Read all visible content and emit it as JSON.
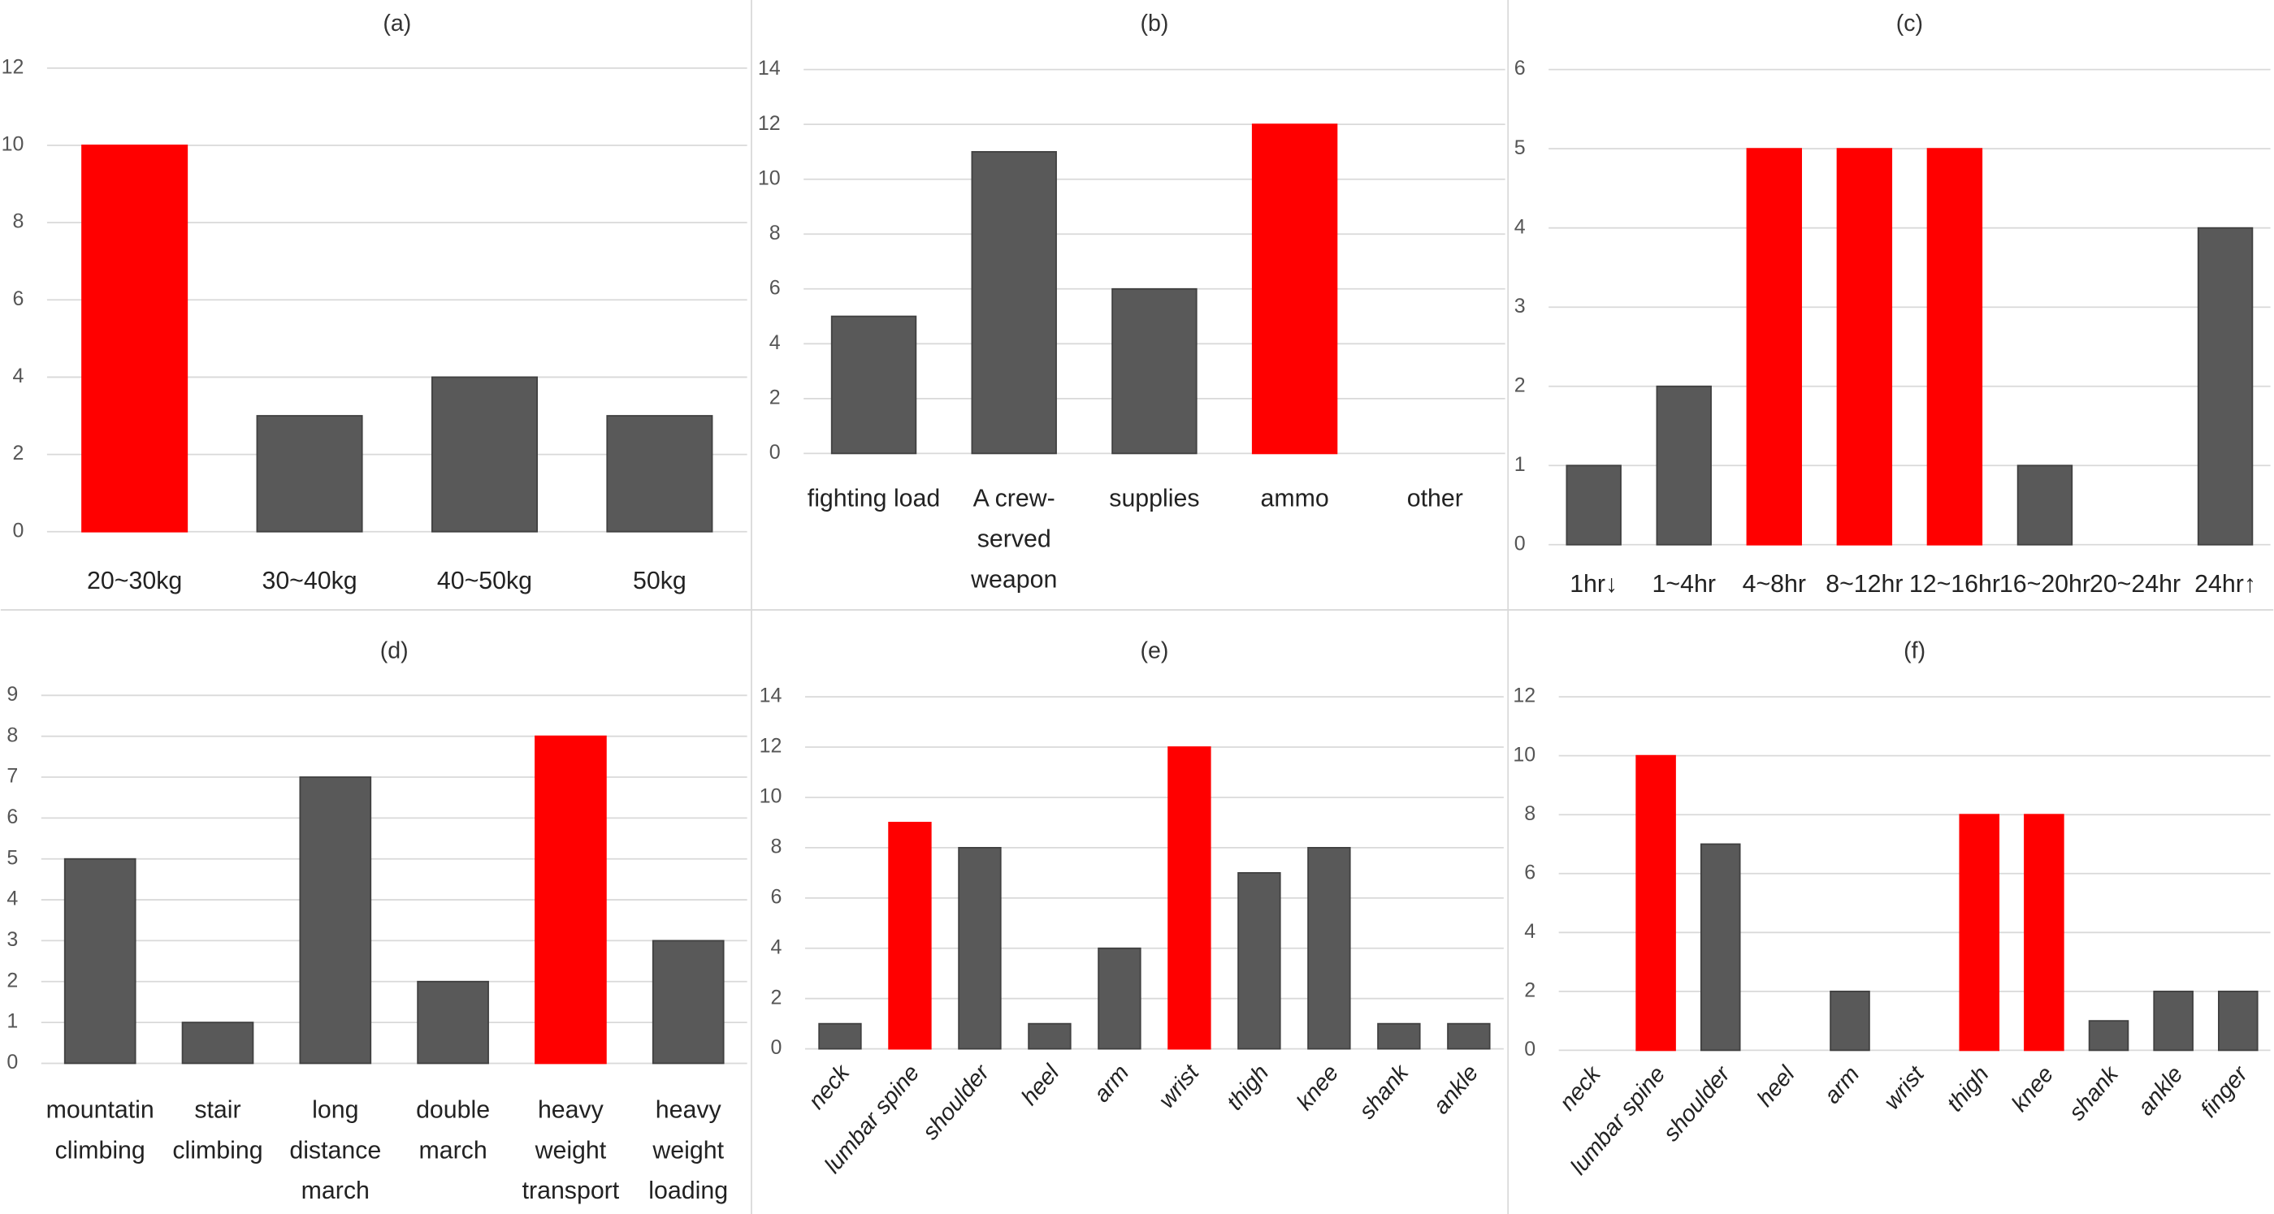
{
  "chart_data": [
    {
      "type": "bar",
      "title": "(a)",
      "categories": [
        "20~30kg",
        "30~40kg",
        "40~50kg",
        "50kg"
      ],
      "values": [
        10,
        3,
        4,
        3
      ],
      "colors": [
        "#ff0000",
        "#595959",
        "#595959",
        "#595959"
      ],
      "ylim": [
        0,
        12
      ],
      "yticks": [
        0,
        2,
        4,
        6,
        8,
        10,
        12
      ],
      "grid": true
    },
    {
      "type": "bar",
      "title": "(b)",
      "categories": [
        "fighting load",
        "A crew-served weapon",
        "supplies",
        "ammo",
        "other"
      ],
      "values": [
        5,
        11,
        6,
        12,
        0
      ],
      "colors": [
        "#595959",
        "#595959",
        "#595959",
        "#ff0000",
        "#595959"
      ],
      "ylim": [
        0,
        14
      ],
      "yticks": [
        0,
        2,
        4,
        6,
        8,
        10,
        12,
        14
      ],
      "grid": true
    },
    {
      "type": "bar",
      "title": "(c)",
      "categories": [
        "1hr↓",
        "1~4hr",
        "4~8hr",
        "8~12hr",
        "12~16hr",
        "16~20hr",
        "20~24hr",
        "24hr↑"
      ],
      "values": [
        1,
        2,
        5,
        5,
        5,
        1,
        0,
        4
      ],
      "colors": [
        "#595959",
        "#595959",
        "#ff0000",
        "#ff0000",
        "#ff0000",
        "#595959",
        "#595959",
        "#595959"
      ],
      "ylim": [
        0,
        6
      ],
      "yticks": [
        0,
        1,
        2,
        3,
        4,
        5,
        6
      ],
      "grid": true
    },
    {
      "type": "bar",
      "title": "(d)",
      "categories": [
        "mountatin climbing",
        "stair climbing",
        "long distance march",
        "double march",
        "heavy weight transport",
        "heavy weight loading"
      ],
      "values": [
        5,
        1,
        7,
        2,
        8,
        3
      ],
      "colors": [
        "#595959",
        "#595959",
        "#595959",
        "#595959",
        "#ff0000",
        "#595959"
      ],
      "ylim": [
        0,
        9
      ],
      "yticks": [
        0,
        1,
        2,
        3,
        4,
        5,
        6,
        7,
        8,
        9
      ],
      "grid": true
    },
    {
      "type": "bar",
      "title": "(e)",
      "categories": [
        "neck",
        "lumbar spine",
        "shoulder",
        "heel",
        "arm",
        "wrist",
        "thigh",
        "knee",
        "shank",
        "ankle"
      ],
      "values": [
        1,
        9,
        8,
        1,
        4,
        12,
        7,
        8,
        1,
        1
      ],
      "colors": [
        "#595959",
        "#ff0000",
        "#595959",
        "#595959",
        "#595959",
        "#ff0000",
        "#595959",
        "#595959",
        "#595959",
        "#595959"
      ],
      "ylim": [
        0,
        14
      ],
      "yticks": [
        0,
        2,
        4,
        6,
        8,
        10,
        12,
        14
      ],
      "grid": true
    },
    {
      "type": "bar",
      "title": "(f)",
      "categories": [
        "neck",
        "lumbar spine",
        "shoulder",
        "heel",
        "arm",
        "wrist",
        "thigh",
        "knee",
        "shank",
        "ankle",
        "finger"
      ],
      "values": [
        0,
        10,
        7,
        0,
        2,
        0,
        8,
        8,
        1,
        2,
        2
      ],
      "colors": [
        "#595959",
        "#ff0000",
        "#595959",
        "#595959",
        "#595959",
        "#595959",
        "#ff0000",
        "#ff0000",
        "#595959",
        "#595959",
        "#595959"
      ],
      "ylim": [
        0,
        12
      ],
      "yticks": [
        0,
        2,
        4,
        6,
        8,
        10,
        12
      ],
      "grid": true
    }
  ]
}
